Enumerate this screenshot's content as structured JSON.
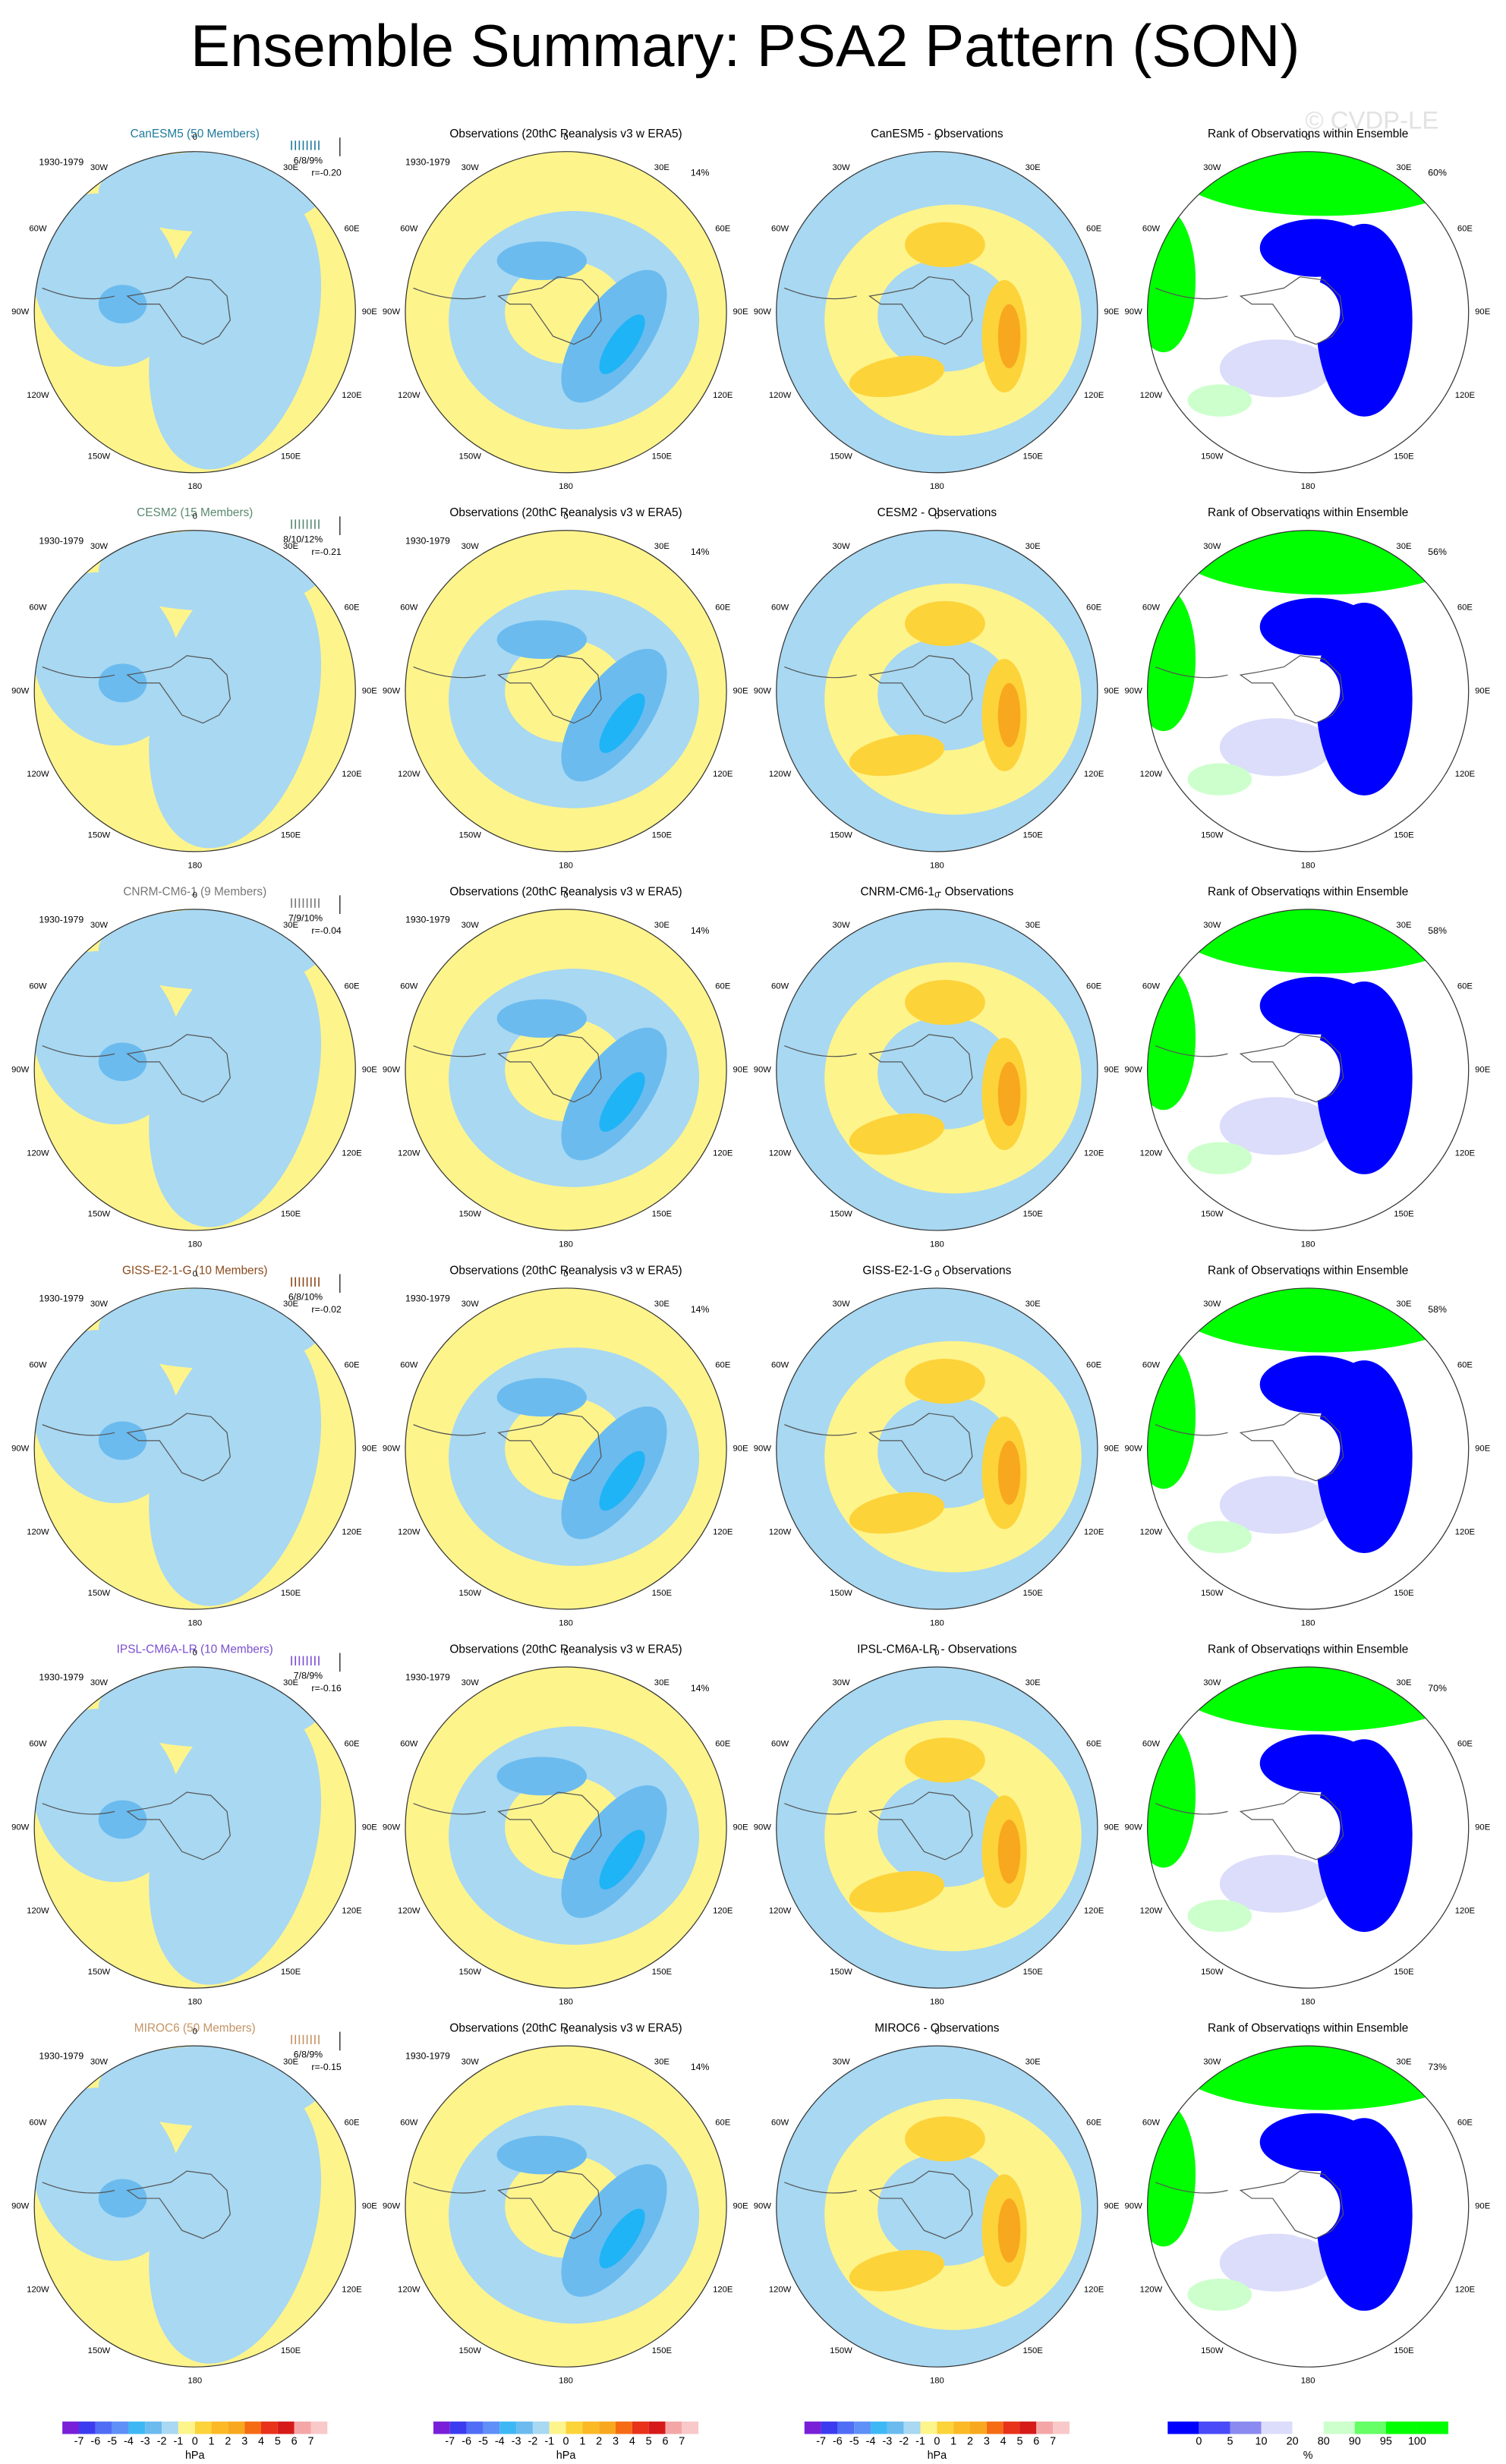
{
  "title": "Ensemble Summary: PSA2 Pattern (SON)",
  "watermark": "© CVDP-LE",
  "period": "1930-1979",
  "observations_title": "Observations (20thC Reanalysis v3 w ERA5)",
  "observations_pct": "14%",
  "rank_title": "Rank of Observations within Ensemble",
  "longitude_labels": [
    "0",
    "30E",
    "60E",
    "90E",
    "120E",
    "150E",
    "180",
    "150W",
    "120W",
    "90W",
    "60W",
    "30W"
  ],
  "rows": [
    {
      "model": "CanESM5 (50 Members)",
      "color": "#1f7a9c",
      "stats": "6/8/9%",
      "r": "r=-0.20",
      "difference_title": "CanESM5 - Observations",
      "rank_pct": "60%"
    },
    {
      "model": "CESM2 (15 Members)",
      "color": "#5a8a70",
      "stats": "8/10/12%",
      "r": "r=-0.21",
      "difference_title": "CESM2 - Observations",
      "rank_pct": "56%"
    },
    {
      "model": "CNRM-CM6-1 (9 Members)",
      "color": "#777777",
      "stats": "7/9/10%",
      "r": "r=-0.04",
      "difference_title": "CNRM-CM6-1 - Observations",
      "rank_pct": "58%"
    },
    {
      "model": "GISS-E2-1-G (10 Members)",
      "color": "#8b4a1d",
      "stats": "6/8/10%",
      "r": "r=-0.02",
      "difference_title": "GISS-E2-1-G - Observations",
      "rank_pct": "58%"
    },
    {
      "model": "IPSL-CM6A-LR (10 Members)",
      "color": "#7a4fd0",
      "stats": "7/8/9%",
      "r": "r=-0.16",
      "difference_title": "IPSL-CM6A-LR - Observations",
      "rank_pct": "70%"
    },
    {
      "model": "MIROC6 (50 Members)",
      "color": "#c49466",
      "stats": "6/8/9%",
      "r": "r=-0.15",
      "difference_title": "MIROC6 - Observations",
      "rank_pct": "73%"
    }
  ],
  "hpa_colorbar": {
    "labels": [
      -7,
      -6,
      -5,
      -4,
      -3,
      -2,
      -1,
      0,
      1,
      2,
      3,
      4,
      5,
      6,
      7
    ],
    "unit": "hPa"
  },
  "rank_colorbar": {
    "labels": [
      0,
      5,
      10,
      20,
      80,
      90,
      95,
      100
    ],
    "unit": "%"
  }
}
